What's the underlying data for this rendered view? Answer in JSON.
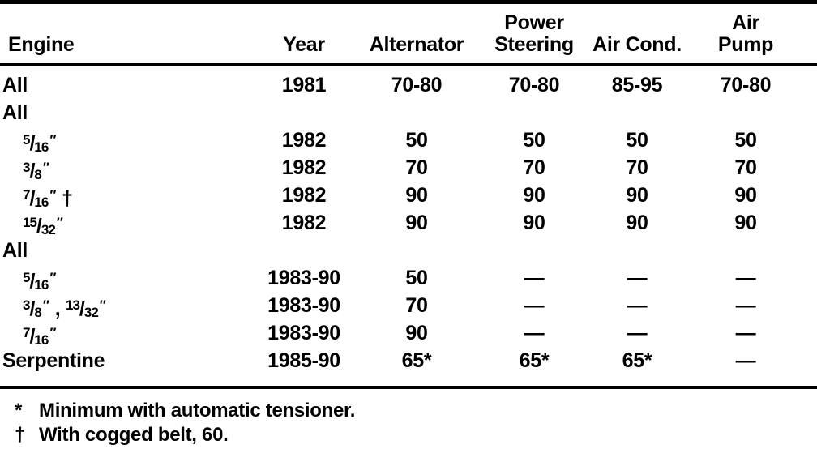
{
  "page": {
    "background": "#ffffff",
    "text_color": "#000000"
  },
  "table": {
    "headers": [
      {
        "id": "engine",
        "lines": [
          "Engine"
        ]
      },
      {
        "id": "year",
        "lines": [
          "Year"
        ]
      },
      {
        "id": "alternator",
        "lines": [
          "Alternator"
        ]
      },
      {
        "id": "power-steering",
        "lines": [
          "Power",
          "Steering"
        ]
      },
      {
        "id": "air-cond",
        "lines": [
          "Air Cond."
        ]
      },
      {
        "id": "air-pump",
        "lines": [
          "Air",
          "Pump"
        ]
      }
    ],
    "rows": [
      {
        "engine": [
          {
            "type": "text",
            "text": "All"
          }
        ],
        "indent": false,
        "year": "1981",
        "alternator": "70-80",
        "power_steering": "70-80",
        "air_cond": "85-95",
        "air_pump": "70-80"
      },
      {
        "engine": [
          {
            "type": "text",
            "text": "All"
          }
        ],
        "indent": false,
        "year": "",
        "alternator": "",
        "power_steering": "",
        "air_cond": "",
        "air_pump": ""
      },
      {
        "engine": [
          {
            "type": "frac",
            "num": "5",
            "den": "16"
          },
          {
            "type": "quote"
          }
        ],
        "indent": true,
        "year": "1982",
        "alternator": "50",
        "power_steering": "50",
        "air_cond": "50",
        "air_pump": "50"
      },
      {
        "engine": [
          {
            "type": "frac",
            "num": "3",
            "den": "8"
          },
          {
            "type": "quote"
          }
        ],
        "indent": true,
        "year": "1982",
        "alternator": "70",
        "power_steering": "70",
        "air_cond": "70",
        "air_pump": "70"
      },
      {
        "engine": [
          {
            "type": "frac",
            "num": "7",
            "den": "16"
          },
          {
            "type": "quote"
          },
          {
            "type": "text",
            "text": " †"
          }
        ],
        "indent": true,
        "year": "1982",
        "alternator": "90",
        "power_steering": "90",
        "air_cond": "90",
        "air_pump": "90"
      },
      {
        "engine": [
          {
            "type": "frac",
            "num": "15",
            "den": "32"
          },
          {
            "type": "quote"
          }
        ],
        "indent": true,
        "year": "1982",
        "alternator": "90",
        "power_steering": "90",
        "air_cond": "90",
        "air_pump": "90"
      },
      {
        "engine": [
          {
            "type": "text",
            "text": "All"
          }
        ],
        "indent": false,
        "year": "",
        "alternator": "",
        "power_steering": "",
        "air_cond": "",
        "air_pump": ""
      },
      {
        "engine": [
          {
            "type": "frac",
            "num": "5",
            "den": "16"
          },
          {
            "type": "quote"
          }
        ],
        "indent": true,
        "year": "1983-90",
        "alternator": "50",
        "power_steering": "—",
        "air_cond": "—",
        "air_pump": "—"
      },
      {
        "engine": [
          {
            "type": "frac",
            "num": "3",
            "den": "8"
          },
          {
            "type": "quote"
          },
          {
            "type": "text",
            "text": " , "
          },
          {
            "type": "frac",
            "num": "13",
            "den": "32"
          },
          {
            "type": "quote"
          }
        ],
        "indent": true,
        "year": "1983-90",
        "alternator": "70",
        "power_steering": "—",
        "air_cond": "—",
        "air_pump": "—"
      },
      {
        "engine": [
          {
            "type": "frac",
            "num": "7",
            "den": "16"
          },
          {
            "type": "quote"
          }
        ],
        "indent": true,
        "year": "1983-90",
        "alternator": "90",
        "power_steering": "—",
        "air_cond": "—",
        "air_pump": "—"
      },
      {
        "engine": [
          {
            "type": "text",
            "text": "Serpentine"
          }
        ],
        "indent": false,
        "year": "1985-90",
        "alternator": "65*",
        "power_steering": "65*",
        "air_cond": "65*",
        "air_pump": "—"
      }
    ]
  },
  "footnotes": [
    {
      "marker": "*",
      "text": "Minimum with automatic tensioner."
    },
    {
      "marker": "†",
      "text": "With cogged belt, 60."
    }
  ]
}
